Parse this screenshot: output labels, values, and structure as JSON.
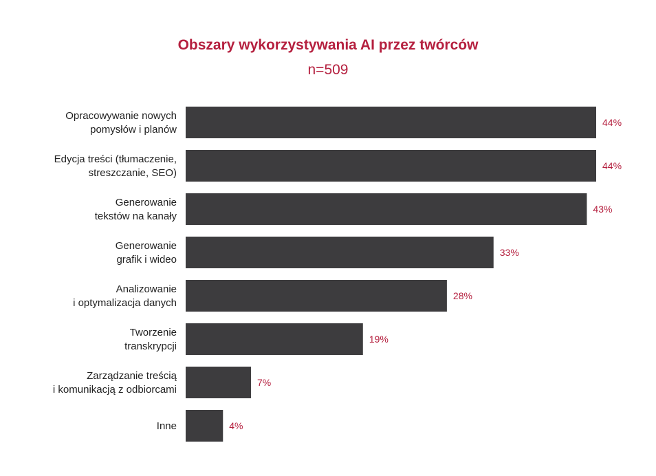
{
  "chart_data": {
    "type": "bar",
    "orientation": "horizontal",
    "title": "Obszary wykorzystywania AI przez twórców",
    "subtitle": "n=509",
    "categories": [
      [
        "Opracowywanie nowych",
        "pomysłów i planów"
      ],
      [
        "Edycja treści (tłumaczenie,",
        "streszczanie, SEO)"
      ],
      [
        "Generowanie",
        "tekstów na kanały"
      ],
      [
        "Generowanie",
        "grafik i wideo"
      ],
      [
        "Analizowanie",
        "i optymalizacja danych"
      ],
      [
        "Tworzenie",
        "transkrypcji"
      ],
      [
        "Zarządzanie treścią",
        "i komunikacją z odbiorcami"
      ],
      [
        "Inne"
      ]
    ],
    "values": [
      44,
      44,
      43,
      33,
      28,
      19,
      7,
      4
    ],
    "value_labels": [
      "44%",
      "44%",
      "43%",
      "33%",
      "28%",
      "19%",
      "7%",
      "4%"
    ],
    "xlim": [
      0,
      44
    ],
    "grid": false,
    "colors": {
      "bar": "#3d3c3e",
      "title": "#b5203f",
      "value_label": "#b5203f",
      "category_label": "#222222"
    }
  }
}
